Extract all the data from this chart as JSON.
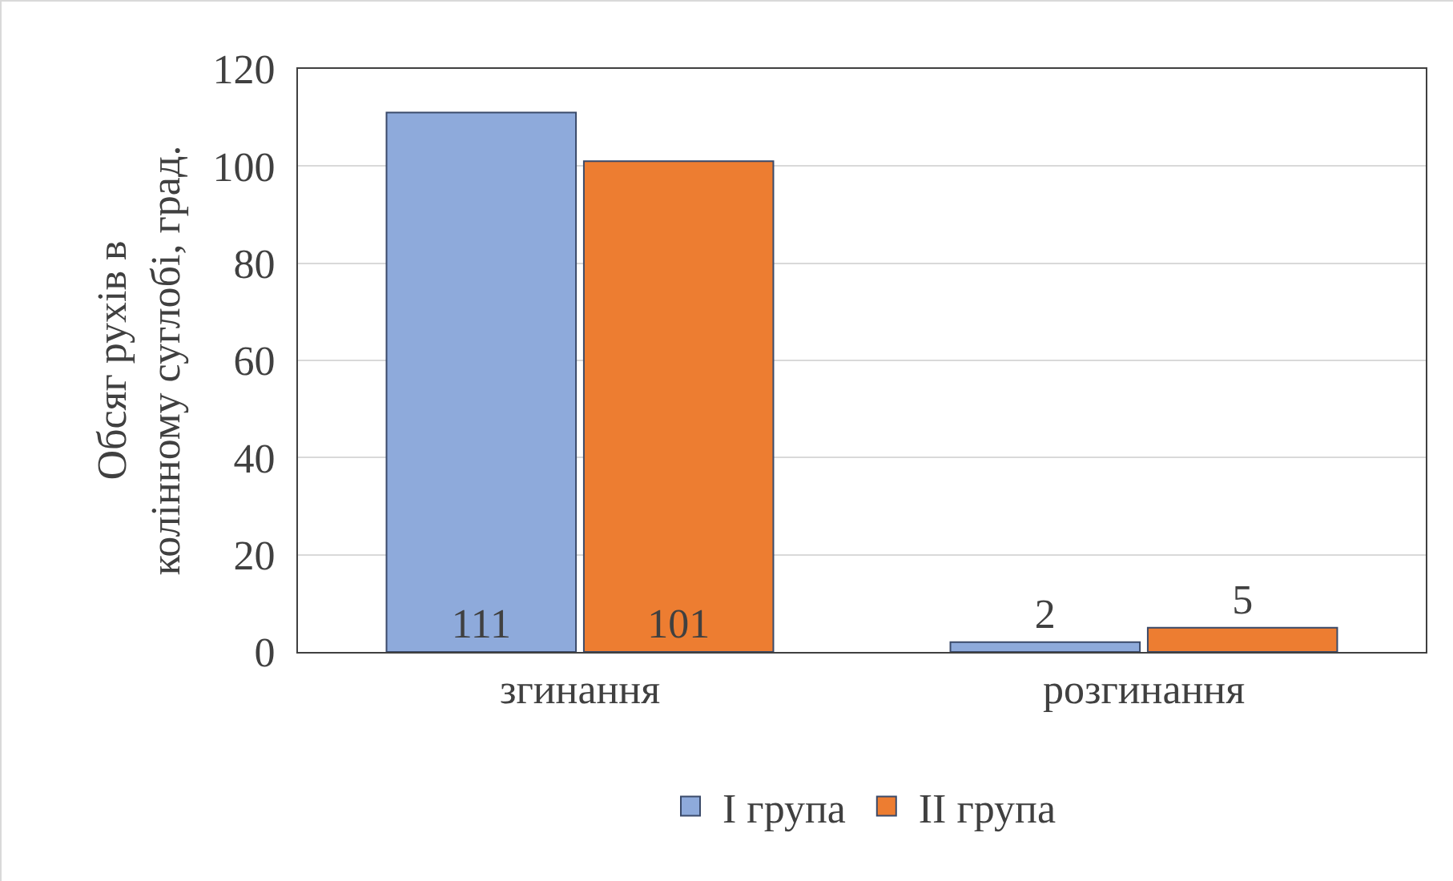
{
  "chart_data": {
    "type": "bar",
    "ylabel": "Обсяг рухів в колінному суглобі, град.",
    "categories": [
      "згинання",
      "розгинання"
    ],
    "series": [
      {
        "name": "I група",
        "color": "#8eaadb",
        "values": [
          111,
          2
        ]
      },
      {
        "name": "II група",
        "color": "#ed7d31",
        "values": [
          101,
          5
        ]
      }
    ],
    "ylim": [
      0,
      120
    ],
    "yticks": [
      0,
      20,
      40,
      60,
      80,
      100,
      120
    ],
    "grid": "y",
    "legend": "bottom",
    "data_labels": true
  }
}
